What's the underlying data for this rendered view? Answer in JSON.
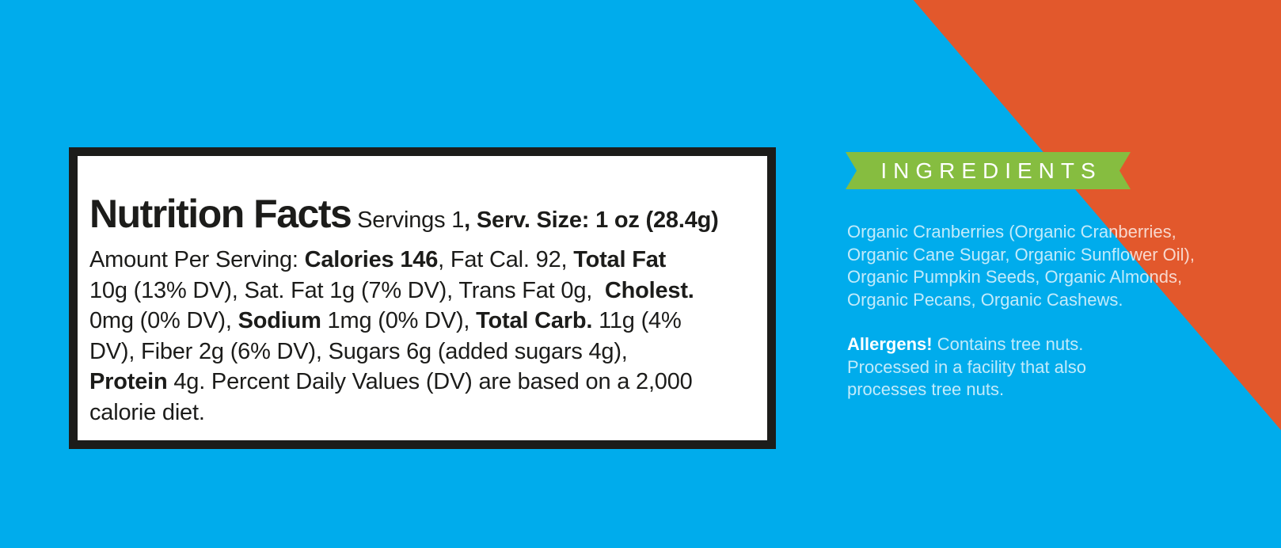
{
  "colors": {
    "background_blue": "#00ACEC",
    "corner_orange": "#E2582C",
    "banner_green": "#86BD40",
    "label_ink": "#1C1C1A",
    "label_background": "#FFFFFF",
    "light_text": "rgba(255,255,255,0.76)"
  },
  "nutrition_label": {
    "lines": [
      {
        "segments": [
          {
            "text": "Nutrition Facts",
            "style": "title"
          },
          {
            "text": " Servings 1",
            "style": "regular"
          },
          {
            "text": ", Serv. Size: 1 oz (28.4g)",
            "style": "bold"
          }
        ]
      },
      {
        "segments": [
          {
            "text": "Amount Per Serving: ",
            "style": "regular"
          },
          {
            "text": "Calories 146",
            "style": "bold"
          },
          {
            "text": ", Fat Cal. 92, ",
            "style": "regular"
          },
          {
            "text": "Total Fat",
            "style": "bold"
          }
        ]
      },
      {
        "segments": [
          {
            "text": "10g (13% DV), Sat. Fat 1g (7% DV), Trans Fat 0g,  ",
            "style": "regular"
          },
          {
            "text": "Cholest.",
            "style": "bold"
          }
        ]
      },
      {
        "segments": [
          {
            "text": "0mg (0% DV), ",
            "style": "regular"
          },
          {
            "text": "Sodium",
            "style": "bold"
          },
          {
            "text": " 1mg (0% DV), ",
            "style": "regular"
          },
          {
            "text": "Total Carb.",
            "style": "bold"
          },
          {
            "text": " 11g (4%",
            "style": "regular"
          }
        ]
      },
      {
        "segments": [
          {
            "text": "DV), Fiber 2g (6% DV), Sugars 6g (added sugars 4g),",
            "style": "regular"
          }
        ]
      },
      {
        "segments": [
          {
            "text": "Protein",
            "style": "bold"
          },
          {
            "text": " 4g. Percent Daily Values (DV) are based on a 2,000",
            "style": "regular"
          }
        ]
      },
      {
        "segments": [
          {
            "text": "calorie diet.",
            "style": "regular"
          }
        ]
      }
    ]
  },
  "ingredients": {
    "banner_label": "INGREDIENTS",
    "lines": [
      "Organic Cranberries (Organic Cranberries,",
      "Organic Cane Sugar, Organic Sunflower Oil),",
      "Organic Pumpkin Seeds, Organic Almonds,",
      "Organic Pecans, Organic Cashews."
    ],
    "allergens": {
      "label": "Allergens!",
      "lines": [
        "Contains tree nuts.",
        "Processed in a facility that also",
        "processes tree nuts."
      ]
    }
  }
}
